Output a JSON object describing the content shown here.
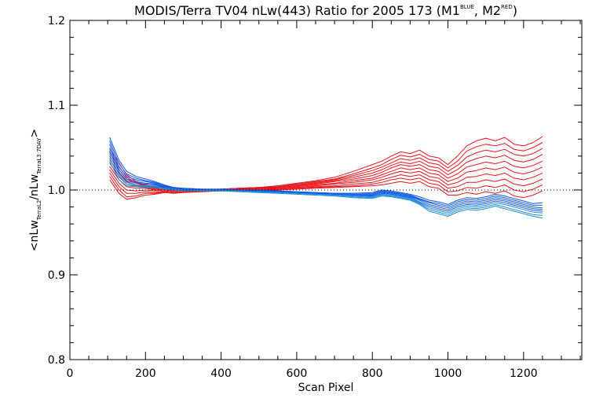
{
  "chart_data": {
    "type": "line",
    "title": {
      "main": "MODIS/Terra TV04 nLw(443) Ratio for 2005 173 (M1",
      "m1_sup": "BLUE",
      "sep": ", M2",
      "m2_sup": "RED",
      "close": ")"
    },
    "xlabel": "Scan Pixel",
    "ylabel": {
      "open": "<nLw",
      "sub1": "TerraL2",
      "slash": "/nLw",
      "sub2": "TerraL3:7DAY",
      "close": ">"
    },
    "xlim": [
      0,
      1354
    ],
    "ylim": [
      0.8,
      1.2
    ],
    "x_ticks": [
      0,
      200,
      400,
      600,
      800,
      1000,
      1200
    ],
    "x_tick_labels": [
      "0",
      "200",
      "400",
      "600",
      "800",
      "1000",
      "1200"
    ],
    "y_ticks": [
      0.8,
      0.9,
      1.0,
      1.1,
      1.2
    ],
    "y_tick_labels": [
      "0.8",
      "0.9",
      "1.0",
      "1.1",
      "1.2"
    ],
    "reference_line": 1.0,
    "grid": false,
    "colors": {
      "red": "#e8141a",
      "blue": "#1458e6",
      "light_blue": "#1a8cd8"
    },
    "x": [
      105,
      130,
      150,
      175,
      200,
      225,
      250,
      275,
      300,
      350,
      400,
      450,
      500,
      550,
      600,
      650,
      700,
      750,
      800,
      825,
      850,
      875,
      900,
      925,
      950,
      975,
      1000,
      1025,
      1050,
      1075,
      1100,
      1125,
      1150,
      1175,
      1200,
      1225,
      1250
    ],
    "series": [
      {
        "color": "red",
        "values": [
          1.048,
          1.032,
          1.018,
          1.01,
          1.006,
          1.004,
          1.005,
          1.002,
          1.001,
          1.0,
          1.001,
          1.002,
          1.003,
          1.005,
          1.008,
          1.011,
          1.015,
          1.022,
          1.03,
          1.034,
          1.04,
          1.045,
          1.043,
          1.047,
          1.04,
          1.038,
          1.03,
          1.04,
          1.052,
          1.058,
          1.061,
          1.058,
          1.062,
          1.054,
          1.052,
          1.056,
          1.063
        ]
      },
      {
        "color": "red",
        "values": [
          1.044,
          1.028,
          1.015,
          1.009,
          1.005,
          1.003,
          1.004,
          1.002,
          1.001,
          1.0,
          1.001,
          1.002,
          1.003,
          1.004,
          1.007,
          1.01,
          1.013,
          1.019,
          1.026,
          1.03,
          1.036,
          1.041,
          1.039,
          1.042,
          1.036,
          1.034,
          1.026,
          1.034,
          1.046,
          1.051,
          1.054,
          1.052,
          1.055,
          1.048,
          1.046,
          1.05,
          1.056
        ]
      },
      {
        "color": "red",
        "values": [
          1.04,
          1.024,
          1.013,
          1.008,
          1.005,
          1.003,
          1.004,
          1.002,
          1.001,
          1.0,
          1.001,
          1.002,
          1.003,
          1.004,
          1.006,
          1.009,
          1.012,
          1.017,
          1.023,
          1.027,
          1.032,
          1.037,
          1.035,
          1.038,
          1.032,
          1.03,
          1.022,
          1.029,
          1.039,
          1.044,
          1.047,
          1.045,
          1.048,
          1.042,
          1.04,
          1.043,
          1.049
        ]
      },
      {
        "color": "red",
        "values": [
          1.036,
          1.02,
          1.01,
          1.006,
          1.004,
          1.002,
          1.003,
          1.001,
          1.0,
          1.0,
          1.0,
          1.001,
          1.002,
          1.003,
          1.005,
          1.008,
          1.011,
          1.015,
          1.02,
          1.024,
          1.029,
          1.033,
          1.031,
          1.034,
          1.028,
          1.026,
          1.018,
          1.024,
          1.033,
          1.037,
          1.04,
          1.038,
          1.041,
          1.035,
          1.033,
          1.036,
          1.042
        ]
      },
      {
        "color": "red",
        "values": [
          1.032,
          1.016,
          1.007,
          1.004,
          1.003,
          1.001,
          1.002,
          1.001,
          1.0,
          1.0,
          1.0,
          1.001,
          1.002,
          1.003,
          1.005,
          1.007,
          1.01,
          1.013,
          1.017,
          1.021,
          1.026,
          1.03,
          1.028,
          1.03,
          1.024,
          1.022,
          1.014,
          1.019,
          1.027,
          1.03,
          1.033,
          1.031,
          1.034,
          1.028,
          1.026,
          1.029,
          1.034
        ]
      },
      {
        "color": "red",
        "values": [
          1.028,
          1.012,
          1.004,
          1.002,
          1.002,
          1.0,
          1.001,
          1.0,
          0.999,
          1.0,
          1.0,
          1.001,
          1.002,
          1.002,
          1.004,
          1.006,
          1.008,
          1.011,
          1.014,
          1.018,
          1.022,
          1.026,
          1.024,
          1.026,
          1.02,
          1.018,
          1.01,
          1.014,
          1.021,
          1.023,
          1.026,
          1.024,
          1.027,
          1.021,
          1.019,
          1.022,
          1.027
        ]
      },
      {
        "color": "red",
        "values": [
          1.024,
          1.008,
          1.0,
          0.999,
          1.0,
          0.999,
          1.0,
          0.999,
          0.999,
          0.999,
          1.0,
          1.0,
          1.001,
          1.002,
          1.003,
          1.005,
          1.007,
          1.009,
          1.012,
          1.015,
          1.019,
          1.022,
          1.02,
          1.022,
          1.016,
          1.014,
          1.006,
          1.009,
          1.015,
          1.016,
          1.019,
          1.017,
          1.02,
          1.014,
          1.012,
          1.015,
          1.02
        ]
      },
      {
        "color": "red",
        "values": [
          1.02,
          1.004,
          0.996,
          0.996,
          0.998,
          0.997,
          0.999,
          0.998,
          0.998,
          0.999,
          1.0,
          1.0,
          1.001,
          1.001,
          1.002,
          1.004,
          1.005,
          1.007,
          1.009,
          1.012,
          1.015,
          1.018,
          1.016,
          1.018,
          1.012,
          1.01,
          1.002,
          1.004,
          1.009,
          1.009,
          1.012,
          1.01,
          1.013,
          1.007,
          1.005,
          1.008,
          1.013
        ]
      },
      {
        "color": "red",
        "values": [
          1.016,
          1.0,
          0.992,
          0.993,
          0.996,
          0.996,
          0.998,
          0.997,
          0.998,
          0.999,
          0.999,
          1.0,
          1.0,
          1.001,
          1.002,
          1.003,
          1.004,
          1.005,
          1.007,
          1.009,
          1.012,
          1.014,
          1.012,
          1.014,
          1.008,
          1.006,
          0.998,
          0.999,
          1.003,
          1.002,
          1.005,
          1.003,
          1.006,
          1.0,
          0.998,
          1.001,
          1.006
        ]
      },
      {
        "color": "red",
        "values": [
          1.012,
          0.996,
          0.989,
          0.991,
          0.994,
          0.995,
          0.997,
          0.996,
          0.997,
          0.998,
          0.999,
          1.0,
          1.0,
          1.0,
          1.001,
          1.002,
          1.003,
          1.004,
          1.005,
          1.006,
          1.008,
          1.01,
          1.008,
          1.01,
          1.004,
          1.002,
          0.994,
          0.994,
          0.997,
          0.995,
          0.998,
          0.996,
          0.999,
          0.993,
          0.991,
          0.994,
          0.999
        ]
      },
      {
        "color": "blue",
        "values": [
          1.062,
          1.035,
          1.022,
          1.016,
          1.013,
          1.01,
          1.006,
          1.003,
          1.002,
          1.001,
          1.001,
          1.0,
          1.0,
          0.999,
          0.998,
          0.997,
          0.996,
          0.996,
          0.997,
          1.0,
          0.999,
          0.997,
          0.995,
          0.992,
          0.988,
          0.986,
          0.983,
          0.988,
          0.991,
          0.99,
          0.992,
          0.995,
          0.993,
          0.99,
          0.987,
          0.984,
          0.985
        ]
      },
      {
        "color": "blue",
        "values": [
          1.058,
          1.031,
          1.019,
          1.014,
          1.011,
          1.009,
          1.005,
          1.003,
          1.002,
          1.001,
          1.001,
          1.0,
          1.0,
          0.999,
          0.998,
          0.997,
          0.996,
          0.996,
          0.996,
          0.999,
          0.998,
          0.996,
          0.994,
          0.99,
          0.986,
          0.984,
          0.981,
          0.986,
          0.989,
          0.988,
          0.99,
          0.993,
          0.991,
          0.988,
          0.985,
          0.982,
          0.982
        ]
      },
      {
        "color": "blue",
        "values": [
          1.054,
          1.027,
          1.016,
          1.012,
          1.01,
          1.008,
          1.004,
          1.002,
          1.001,
          1.001,
          1.0,
          1.0,
          0.999,
          0.999,
          0.998,
          0.997,
          0.996,
          0.995,
          0.995,
          0.998,
          0.997,
          0.995,
          0.993,
          0.989,
          0.985,
          0.982,
          0.979,
          0.984,
          0.987,
          0.986,
          0.988,
          0.991,
          0.989,
          0.986,
          0.983,
          0.98,
          0.979
        ]
      },
      {
        "color": "blue",
        "values": [
          1.05,
          1.024,
          1.013,
          1.01,
          1.008,
          1.007,
          1.004,
          1.002,
          1.001,
          1.0,
          1.0,
          1.0,
          0.999,
          0.998,
          0.997,
          0.996,
          0.995,
          0.994,
          0.994,
          0.997,
          0.996,
          0.994,
          0.992,
          0.988,
          0.983,
          0.98,
          0.977,
          0.982,
          0.985,
          0.984,
          0.986,
          0.989,
          0.987,
          0.984,
          0.981,
          0.978,
          0.977
        ]
      },
      {
        "color": "blue",
        "values": [
          1.046,
          1.021,
          1.011,
          1.008,
          1.007,
          1.006,
          1.003,
          1.001,
          1.001,
          1.0,
          1.0,
          0.999,
          0.999,
          0.998,
          0.997,
          0.996,
          0.995,
          0.994,
          0.993,
          0.996,
          0.995,
          0.993,
          0.991,
          0.986,
          0.981,
          0.978,
          0.975,
          0.98,
          0.983,
          0.982,
          0.984,
          0.987,
          0.985,
          0.982,
          0.979,
          0.976,
          0.975
        ]
      },
      {
        "color": "light_blue",
        "values": [
          1.042,
          1.018,
          1.009,
          1.006,
          1.005,
          1.005,
          1.002,
          1.001,
          1.0,
          1.0,
          1.0,
          0.999,
          0.998,
          0.997,
          0.996,
          0.995,
          0.994,
          0.993,
          0.992,
          0.995,
          0.994,
          0.992,
          0.99,
          0.985,
          0.979,
          0.976,
          0.973,
          0.978,
          0.981,
          0.98,
          0.982,
          0.985,
          0.983,
          0.98,
          0.977,
          0.974,
          0.973
        ]
      },
      {
        "color": "light_blue",
        "values": [
          1.038,
          1.015,
          1.007,
          1.005,
          1.004,
          1.004,
          1.001,
          1.0,
          1.0,
          1.0,
          0.999,
          0.999,
          0.998,
          0.997,
          0.996,
          0.995,
          0.994,
          0.992,
          0.991,
          0.994,
          0.993,
          0.991,
          0.989,
          0.984,
          0.977,
          0.974,
          0.971,
          0.976,
          0.979,
          0.978,
          0.98,
          0.983,
          0.98,
          0.977,
          0.974,
          0.971,
          0.97
        ]
      },
      {
        "color": "light_blue",
        "values": [
          1.034,
          1.012,
          1.005,
          1.004,
          1.003,
          1.003,
          1.001,
          1.0,
          0.999,
          0.999,
          0.999,
          0.998,
          0.997,
          0.996,
          0.995,
          0.994,
          0.993,
          0.991,
          0.99,
          0.993,
          0.992,
          0.99,
          0.988,
          0.983,
          0.975,
          0.972,
          0.969,
          0.974,
          0.977,
          0.976,
          0.978,
          0.981,
          0.978,
          0.975,
          0.972,
          0.969,
          0.967
        ]
      }
    ]
  }
}
